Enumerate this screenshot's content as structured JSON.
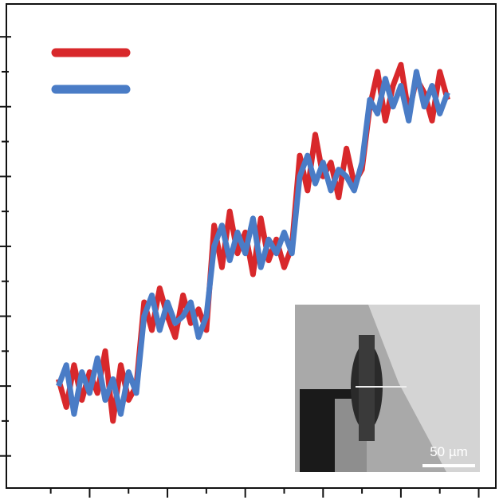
{
  "chart_data": {
    "type": "line",
    "x": [
      0.6,
      0.7,
      0.8,
      0.9,
      1.0,
      1.1,
      1.2,
      1.3,
      1.4,
      1.5,
      1.6,
      1.7,
      1.8,
      1.9,
      2.0,
      2.1,
      2.2,
      2.3,
      2.4,
      2.5,
      2.6,
      2.7,
      2.8,
      2.9,
      3.0,
      3.1,
      3.2,
      3.3,
      3.4,
      3.5,
      3.6,
      3.7,
      3.8,
      3.9,
      4.0,
      4.1,
      4.2,
      4.3,
      4.4,
      4.5,
      4.6,
      4.7,
      4.8,
      4.9,
      5.0,
      5.1,
      5.2,
      5.3,
      5.4,
      5.5,
      5.6
    ],
    "series": [
      {
        "color": "#d8282b",
        "values": [
          2.1,
          1.7,
          2.3,
          1.8,
          2.2,
          1.9,
          2.5,
          1.5,
          2.3,
          1.8,
          2.0,
          3.2,
          2.8,
          3.4,
          3.0,
          2.7,
          3.3,
          2.9,
          3.1,
          2.8,
          4.3,
          3.7,
          4.5,
          3.9,
          4.2,
          3.6,
          4.4,
          3.8,
          4.1,
          3.7,
          4.0,
          5.3,
          4.8,
          5.6,
          5.0,
          5.2,
          4.7,
          5.4,
          4.9,
          5.1,
          6.0,
          6.5,
          5.8,
          6.3,
          6.6,
          5.9,
          6.4,
          6.2,
          5.8,
          6.5,
          6.1
        ]
      },
      {
        "color": "#4a7cc6",
        "values": [
          2.0,
          2.3,
          1.6,
          2.2,
          1.9,
          2.4,
          1.8,
          2.1,
          1.6,
          2.2,
          1.9,
          3.0,
          3.3,
          2.8,
          3.2,
          2.9,
          3.0,
          3.2,
          2.7,
          3.0,
          4.0,
          4.3,
          3.8,
          4.2,
          3.9,
          4.4,
          3.7,
          4.1,
          3.9,
          4.2,
          3.9,
          5.0,
          5.3,
          4.9,
          5.2,
          4.8,
          5.1,
          5.0,
          4.8,
          5.2,
          6.1,
          5.9,
          6.4,
          6.0,
          6.3,
          5.8,
          6.5,
          6.0,
          6.3,
          5.9,
          6.2
        ]
      }
    ],
    "xlim": [
      -0.07,
      6.22
    ],
    "xticks": [
      1,
      2,
      3,
      4,
      5,
      6
    ],
    "ylim": [
      0.54,
      7.47
    ],
    "yticks": [
      1,
      2,
      3,
      4,
      5,
      6,
      7
    ],
    "inset": {
      "scale_label": "50 µm"
    }
  }
}
